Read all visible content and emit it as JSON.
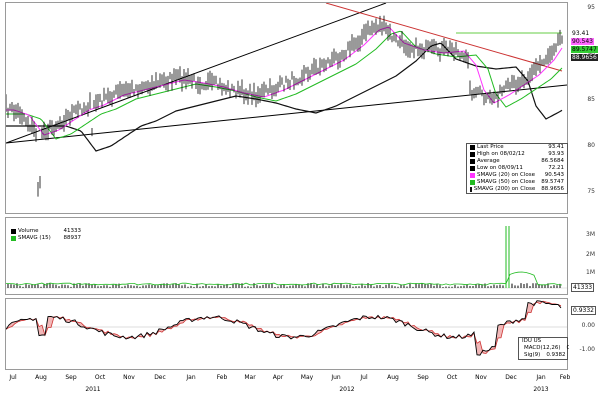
{
  "price_axis": [
    "95",
    "90",
    "85",
    "80",
    "75"
  ],
  "price_tags": [
    {
      "value": "93.41",
      "bg": "#ffffff"
    },
    {
      "value": "90.543",
      "bg": "#ff66ff"
    },
    {
      "value": "89.5747",
      "bg": "#33cc33"
    },
    {
      "value": "88.9656",
      "bg": "#222222",
      "color": "#ffffff"
    }
  ],
  "price_legend": [
    {
      "name": "Last Price",
      "value": "93.41",
      "color": "#000000"
    },
    {
      "name": "High on 08/02/12",
      "value": "93.93",
      "color": "#000000"
    },
    {
      "name": "Average",
      "value": "86.5684",
      "color": "#000000"
    },
    {
      "name": "Low on 08/09/11",
      "value": "72.21",
      "color": "#000000"
    },
    {
      "name": "SMAVG (20) on Close",
      "value": "90.543",
      "color": "#ff33ff"
    },
    {
      "name": "SMAVG (50) on Close",
      "value": "89.5747",
      "color": "#22bb22"
    },
    {
      "name": "SMAVG (200) on Close",
      "value": "88.9656",
      "color": "#111111"
    }
  ],
  "volume_legend": [
    {
      "name": "Volume",
      "value": "41333",
      "color": "#000000"
    },
    {
      "name": "SMAVG (15)",
      "value": "88937",
      "color": "#22bb22"
    }
  ],
  "volume_axis": [
    "3M",
    "2M",
    "1M"
  ],
  "volume_tag": "41333",
  "macd_axis": [
    "0.00",
    "-1.00"
  ],
  "macd_tag": "0.9332",
  "macd_legend": {
    "title": "IDU US",
    "rows": [
      {
        "name": "MACD(12,26)",
        "value": "0.9332",
        "color": "#000000"
      },
      {
        "name": "Sig(9)",
        "value": "0.9382",
        "color": "#cc3333"
      }
    ]
  },
  "months": [
    "Jul",
    "Aug",
    "Sep",
    "Oct",
    "Nov",
    "Dec",
    "Jan",
    "Feb",
    "Mar",
    "Apr",
    "May",
    "Jun",
    "Jul",
    "Aug",
    "Sep",
    "Oct",
    "Nov",
    "Dec",
    "Jan",
    "Feb"
  ],
  "years": [
    "2011",
    "2012",
    "2013"
  ],
  "colors": {
    "price": "#000000",
    "sma20": "#ff33ff",
    "sma50": "#22bb22",
    "sma200": "#111111",
    "resistance": "#cc3333",
    "target": "#66cc44"
  }
}
